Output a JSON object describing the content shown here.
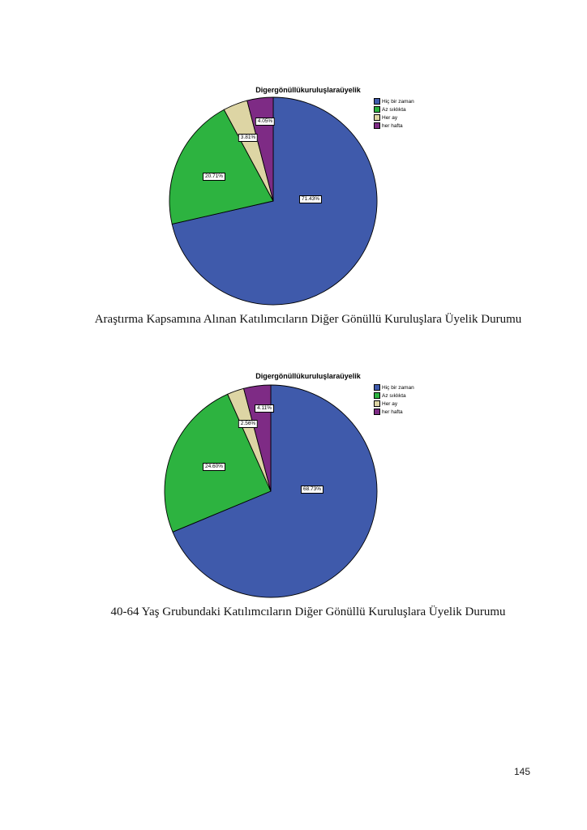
{
  "page": {
    "number": "145"
  },
  "chart_data": [
    {
      "type": "pie",
      "title": "Digergönüllükuruluşlaraüyelik",
      "caption": "Araştırma Kapsamına Alınan Katılımcıların Diğer Gönüllü Kuruluşlara Üyelik Durumu",
      "categories": [
        "Hiç bir zaman",
        "Az sıklıkta",
        "Her ay",
        "her hafta"
      ],
      "values": [
        71.43,
        20.71,
        3.81,
        4.05
      ],
      "labels": [
        "71.43%",
        "20.71%",
        "3.81%",
        "4.05%"
      ],
      "colors": [
        "#3F5AAB",
        "#2DB340",
        "#DDD5A4",
        "#7E2B85"
      ],
      "legend_position": "right",
      "start_angle_deg": 0,
      "direction": "clockwise"
    },
    {
      "type": "pie",
      "title": "Digergönüllükuruluşlaraüyelik",
      "caption": "40-64 Yaş Grubundaki Katılımcıların Diğer Gönüllü Kuruluşlara Üyelik Durumu",
      "categories": [
        "Hiç bir zaman",
        "Az sıklıkta",
        "Her ay",
        "her hafta"
      ],
      "values": [
        68.73,
        24.6,
        2.56,
        4.11
      ],
      "labels": [
        "68.73%",
        "24.60%",
        "2.56%",
        "4.11%"
      ],
      "colors": [
        "#3F5AAB",
        "#2DB340",
        "#DDD5A4",
        "#7E2B85"
      ],
      "legend_position": "right",
      "start_angle_deg": 0,
      "direction": "clockwise"
    }
  ],
  "styles": {
    "slice_stroke": "#000000"
  }
}
